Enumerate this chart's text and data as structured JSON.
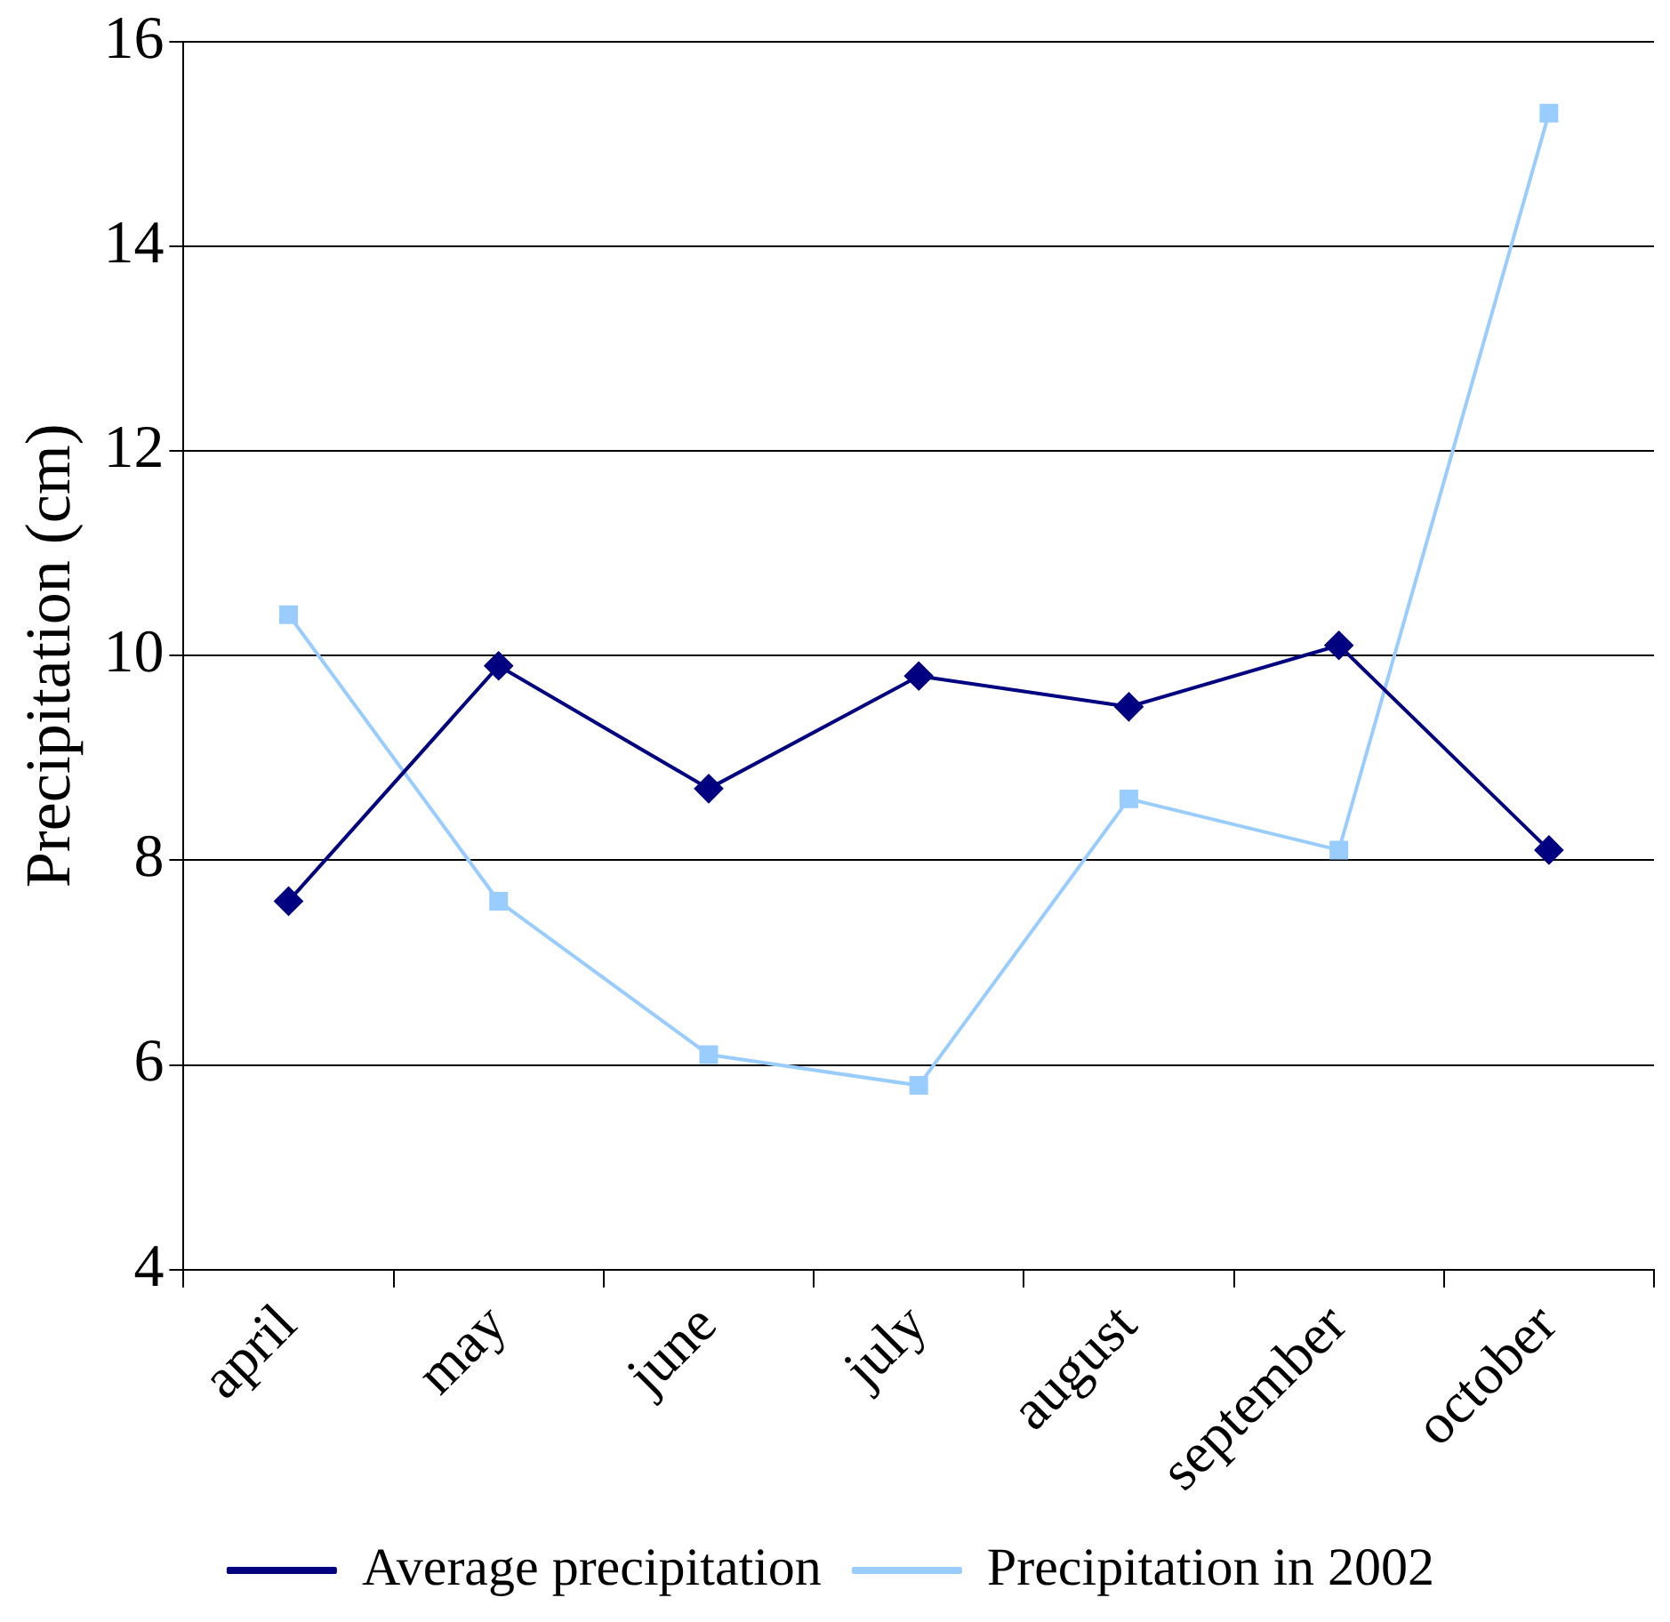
{
  "chart_data": {
    "type": "line",
    "ylabel": "Precipitation (cm)",
    "categories": [
      "april",
      "may",
      "june",
      "july",
      "august",
      "september",
      "october"
    ],
    "series": [
      {
        "name": "Average precipitation",
        "color": "#000080",
        "marker": "diamond",
        "values": [
          7.6,
          9.9,
          8.7,
          9.8,
          9.5,
          10.1,
          8.1
        ]
      },
      {
        "name": "Precipitation in 2002",
        "color": "#99ccff",
        "marker": "square",
        "values": [
          10.4,
          7.6,
          6.1,
          5.8,
          8.6,
          8.1,
          15.3
        ]
      }
    ],
    "ylim": [
      4,
      16
    ],
    "yticks": [
      4,
      6,
      8,
      10,
      12,
      14,
      16
    ],
    "grid": "y",
    "legend": "bottom"
  }
}
